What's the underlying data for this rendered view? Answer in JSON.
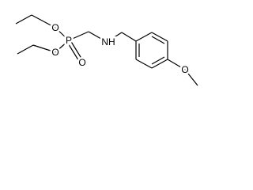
{
  "atoms": [
    "O",
    "P",
    "O",
    "O",
    "NH",
    "O"
  ]
}
